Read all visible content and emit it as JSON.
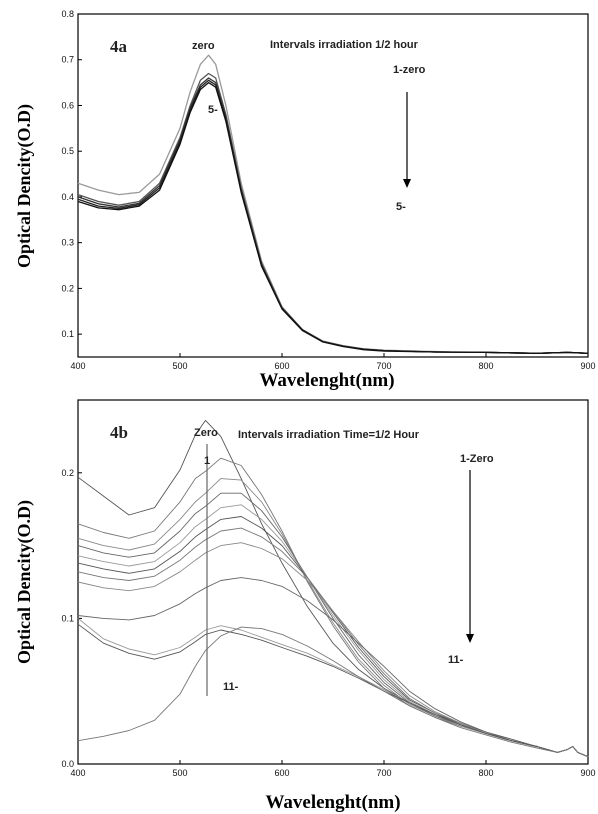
{
  "chart_data": [
    {
      "type": "line",
      "panel_label": "4a",
      "xlabel": "Wavelenght(nm)",
      "ylabel": "Optical Dencity(O.D)",
      "xlim": [
        400,
        900
      ],
      "ylim": [
        0.05,
        0.8
      ],
      "x_ticks": [
        "400",
        "500",
        "600",
        "700",
        "800",
        "900"
      ],
      "y_ticks": [
        "0.1",
        "0.2",
        "0.3",
        "0.4",
        "0.5",
        "0.6",
        "0.7",
        "0.8"
      ],
      "grid": false,
      "annotations": {
        "peak_top": "zero",
        "peak_bottom": "5-",
        "interval": "Intervals irradiation 1/2 hour",
        "arrow_start": "1-zero",
        "arrow_end": "5-"
      },
      "x": [
        400,
        420,
        440,
        460,
        480,
        500,
        510,
        520,
        528,
        535,
        545,
        560,
        580,
        600,
        620,
        640,
        660,
        680,
        700,
        750,
        800,
        850,
        880,
        900
      ],
      "series": [
        {
          "values": [
            0.43,
            0.415,
            0.405,
            0.41,
            0.45,
            0.55,
            0.63,
            0.69,
            0.71,
            0.69,
            0.6,
            0.43,
            0.26,
            0.16,
            0.11,
            0.085,
            0.075,
            0.068,
            0.065,
            0.062,
            0.06,
            0.058,
            0.06,
            0.058
          ]
        },
        {
          "values": [
            0.405,
            0.39,
            0.382,
            0.39,
            0.43,
            0.53,
            0.6,
            0.655,
            0.67,
            0.66,
            0.58,
            0.42,
            0.255,
            0.158,
            0.11,
            0.084,
            0.074,
            0.067,
            0.064,
            0.061,
            0.06,
            0.058,
            0.06,
            0.058
          ]
        },
        {
          "values": [
            0.4,
            0.385,
            0.378,
            0.386,
            0.425,
            0.525,
            0.595,
            0.645,
            0.66,
            0.65,
            0.575,
            0.415,
            0.252,
            0.157,
            0.109,
            0.084,
            0.074,
            0.067,
            0.064,
            0.061,
            0.06,
            0.058,
            0.06,
            0.058
          ]
        },
        {
          "values": [
            0.395,
            0.38,
            0.375,
            0.383,
            0.42,
            0.52,
            0.59,
            0.64,
            0.655,
            0.645,
            0.57,
            0.412,
            0.25,
            0.156,
            0.109,
            0.083,
            0.073,
            0.067,
            0.064,
            0.061,
            0.06,
            0.058,
            0.06,
            0.058
          ]
        },
        {
          "values": [
            0.39,
            0.376,
            0.372,
            0.38,
            0.415,
            0.515,
            0.585,
            0.635,
            0.65,
            0.64,
            0.565,
            0.41,
            0.248,
            0.155,
            0.108,
            0.083,
            0.073,
            0.066,
            0.063,
            0.061,
            0.06,
            0.058,
            0.06,
            0.058
          ]
        }
      ]
    },
    {
      "type": "line",
      "panel_label": "4b",
      "xlabel": "Wavelenght(nm)",
      "ylabel": "Optical Dencity(O.D)",
      "xlim": [
        400,
        900
      ],
      "ylim": [
        0.0,
        0.25
      ],
      "x_ticks": [
        "400",
        "500",
        "600",
        "700",
        "800",
        "900"
      ],
      "y_ticks": [
        "0.0",
        "0.1",
        "0.2"
      ],
      "grid": false,
      "annotations": {
        "peak_top": "Zero",
        "peak_marker": "1",
        "peak_bottom": "11-",
        "interval": "Intervals irradiation Time=1/2 Hour",
        "arrow_start": "1-Zero",
        "arrow_end": "11-"
      },
      "x": [
        400,
        425,
        450,
        475,
        500,
        515,
        525,
        540,
        560,
        580,
        600,
        625,
        650,
        675,
        700,
        725,
        750,
        775,
        800,
        825,
        850,
        870,
        880,
        885,
        890,
        900
      ],
      "series": [
        {
          "values": [
            0.197,
            0.184,
            0.171,
            0.176,
            0.202,
            0.226,
            0.236,
            0.225,
            0.196,
            0.165,
            0.138,
            0.108,
            0.083,
            0.065,
            0.052,
            0.042,
            0.034,
            0.028,
            0.022,
            0.017,
            0.012,
            0.008,
            0.01,
            0.012,
            0.008,
            0.005
          ]
        },
        {
          "values": [
            0.165,
            0.159,
            0.155,
            0.16,
            0.18,
            0.196,
            0.201,
            0.21,
            0.205,
            0.185,
            0.16,
            0.125,
            0.095,
            0.07,
            0.052,
            0.04,
            0.032,
            0.026,
            0.021,
            0.016,
            0.012,
            0.008,
            0.01,
            0.012,
            0.008,
            0.005
          ]
        },
        {
          "values": [
            0.155,
            0.15,
            0.147,
            0.151,
            0.168,
            0.18,
            0.186,
            0.196,
            0.195,
            0.18,
            0.158,
            0.126,
            0.097,
            0.072,
            0.054,
            0.041,
            0.033,
            0.026,
            0.021,
            0.016,
            0.012,
            0.008,
            0.01,
            0.012,
            0.008,
            0.005
          ]
        },
        {
          "values": [
            0.15,
            0.145,
            0.142,
            0.145,
            0.16,
            0.172,
            0.177,
            0.186,
            0.186,
            0.174,
            0.156,
            0.128,
            0.1,
            0.075,
            0.056,
            0.042,
            0.033,
            0.027,
            0.021,
            0.016,
            0.012,
            0.008,
            0.01,
            0.012,
            0.008,
            0.005
          ]
        },
        {
          "values": [
            0.143,
            0.139,
            0.136,
            0.139,
            0.152,
            0.163,
            0.168,
            0.176,
            0.178,
            0.168,
            0.153,
            0.128,
            0.102,
            0.078,
            0.058,
            0.043,
            0.034,
            0.027,
            0.021,
            0.016,
            0.012,
            0.008,
            0.01,
            0.012,
            0.008,
            0.005
          ]
        },
        {
          "values": [
            0.138,
            0.134,
            0.131,
            0.134,
            0.146,
            0.156,
            0.161,
            0.168,
            0.17,
            0.162,
            0.15,
            0.128,
            0.104,
            0.08,
            0.06,
            0.044,
            0.035,
            0.027,
            0.021,
            0.016,
            0.012,
            0.008,
            0.01,
            0.012,
            0.008,
            0.005
          ]
        },
        {
          "values": [
            0.132,
            0.128,
            0.126,
            0.129,
            0.14,
            0.149,
            0.154,
            0.16,
            0.162,
            0.156,
            0.146,
            0.128,
            0.105,
            0.082,
            0.062,
            0.045,
            0.035,
            0.028,
            0.021,
            0.016,
            0.012,
            0.008,
            0.01,
            0.012,
            0.008,
            0.005
          ]
        },
        {
          "values": [
            0.125,
            0.121,
            0.119,
            0.122,
            0.132,
            0.14,
            0.145,
            0.15,
            0.152,
            0.148,
            0.141,
            0.126,
            0.105,
            0.084,
            0.064,
            0.047,
            0.036,
            0.028,
            0.021,
            0.016,
            0.012,
            0.008,
            0.01,
            0.012,
            0.008,
            0.005
          ]
        },
        {
          "values": [
            0.102,
            0.1,
            0.099,
            0.102,
            0.11,
            0.117,
            0.121,
            0.126,
            0.128,
            0.126,
            0.122,
            0.112,
            0.099,
            0.083,
            0.067,
            0.05,
            0.038,
            0.029,
            0.022,
            0.016,
            0.012,
            0.008,
            0.01,
            0.012,
            0.008,
            0.005
          ]
        },
        {
          "values": [
            0.1,
            0.086,
            0.079,
            0.075,
            0.08,
            0.087,
            0.092,
            0.095,
            0.092,
            0.087,
            0.082,
            0.076,
            0.068,
            0.06,
            0.051,
            0.042,
            0.034,
            0.027,
            0.021,
            0.016,
            0.012,
            0.008,
            0.01,
            0.012,
            0.008,
            0.005
          ]
        },
        {
          "values": [
            0.096,
            0.083,
            0.076,
            0.072,
            0.077,
            0.084,
            0.089,
            0.092,
            0.089,
            0.085,
            0.08,
            0.074,
            0.067,
            0.059,
            0.05,
            0.042,
            0.034,
            0.027,
            0.021,
            0.016,
            0.012,
            0.008,
            0.01,
            0.012,
            0.008,
            0.005
          ]
        },
        {
          "values": [
            0.016,
            0.019,
            0.023,
            0.03,
            0.048,
            0.067,
            0.078,
            0.088,
            0.094,
            0.093,
            0.089,
            0.081,
            0.071,
            0.06,
            0.05,
            0.04,
            0.032,
            0.025,
            0.02,
            0.015,
            0.011,
            0.008,
            0.01,
            0.012,
            0.008,
            0.005
          ]
        }
      ]
    }
  ]
}
